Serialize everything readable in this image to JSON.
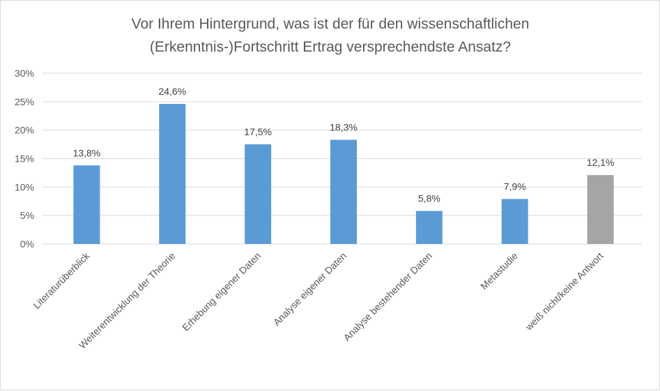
{
  "chart_data": {
    "type": "bar",
    "title_lines": [
      "Vor Ihrem Hintergrund, was ist der für den wissenschaftlichen",
      "(Erkenntnis-)Fortschritt Ertrag versprechendste Ansatz?"
    ],
    "categories": [
      "Literaturüberblick",
      "Weiterentwicklung der Theorie",
      "Erhebung eigener Daten",
      "Analyse eigener Daten",
      "Analyse bestehender Daten",
      "Metastudie",
      "weiß nicht/keine Antwort"
    ],
    "values": [
      13.8,
      24.6,
      17.5,
      18.3,
      5.8,
      7.9,
      12.1
    ],
    "data_labels": [
      "13,8%",
      "24,6%",
      "17,5%",
      "18,3%",
      "5,8%",
      "7,9%",
      "12,1%"
    ],
    "bar_colors": [
      "#5b9bd5",
      "#5b9bd5",
      "#5b9bd5",
      "#5b9bd5",
      "#5b9bd5",
      "#5b9bd5",
      "#a5a5a5"
    ],
    "ylim": [
      0,
      30
    ],
    "yticks": [
      0,
      5,
      10,
      15,
      20,
      25,
      30
    ],
    "ytick_labels": [
      "0%",
      "5%",
      "10%",
      "15%",
      "20%",
      "25%",
      "30%"
    ],
    "grid": true,
    "legend": "none"
  }
}
